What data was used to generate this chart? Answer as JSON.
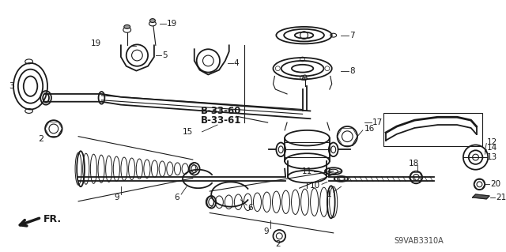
{
  "background_color": "#ffffff",
  "line_color": "#1a1a1a",
  "diagram_code": "S9VAB3310A",
  "fr_label": "FR.",
  "bold_labels": [
    "B-33-60",
    "B-33-61"
  ],
  "figsize": [
    6.4,
    3.19
  ],
  "dpi": 100
}
